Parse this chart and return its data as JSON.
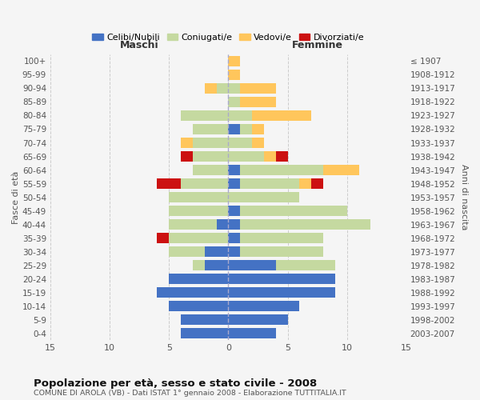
{
  "age_groups": [
    "0-4",
    "5-9",
    "10-14",
    "15-19",
    "20-24",
    "25-29",
    "30-34",
    "35-39",
    "40-44",
    "45-49",
    "50-54",
    "55-59",
    "60-64",
    "65-69",
    "70-74",
    "75-79",
    "80-84",
    "85-89",
    "90-94",
    "95-99",
    "100+"
  ],
  "birth_years": [
    "2003-2007",
    "1998-2002",
    "1993-1997",
    "1988-1992",
    "1983-1987",
    "1978-1982",
    "1973-1977",
    "1968-1972",
    "1963-1967",
    "1958-1962",
    "1953-1957",
    "1948-1952",
    "1943-1947",
    "1938-1942",
    "1933-1937",
    "1928-1932",
    "1923-1927",
    "1918-1922",
    "1913-1917",
    "1908-1912",
    "≤ 1907"
  ],
  "male": {
    "celibi": [
      4,
      4,
      5,
      6,
      5,
      2,
      2,
      0,
      1,
      0,
      0,
      0,
      0,
      0,
      0,
      0,
      0,
      0,
      0,
      0,
      0
    ],
    "coniugati": [
      0,
      0,
      0,
      0,
      0,
      1,
      3,
      5,
      4,
      5,
      5,
      4,
      3,
      3,
      3,
      3,
      4,
      0,
      1,
      0,
      0
    ],
    "vedovi": [
      0,
      0,
      0,
      0,
      0,
      0,
      0,
      0,
      0,
      0,
      0,
      0,
      0,
      0,
      1,
      0,
      0,
      0,
      1,
      0,
      0
    ],
    "divorziati": [
      0,
      0,
      0,
      0,
      0,
      0,
      0,
      1,
      0,
      0,
      0,
      2,
      0,
      1,
      0,
      0,
      0,
      0,
      0,
      0,
      0
    ]
  },
  "female": {
    "nubili": [
      4,
      5,
      6,
      9,
      9,
      4,
      1,
      1,
      1,
      1,
      0,
      1,
      1,
      0,
      0,
      1,
      0,
      0,
      0,
      0,
      0
    ],
    "coniugate": [
      0,
      0,
      0,
      0,
      0,
      5,
      7,
      7,
      11,
      9,
      6,
      5,
      7,
      3,
      2,
      1,
      2,
      1,
      1,
      0,
      0
    ],
    "vedove": [
      0,
      0,
      0,
      0,
      0,
      0,
      0,
      0,
      0,
      0,
      0,
      1,
      3,
      1,
      1,
      1,
      5,
      3,
      3,
      1,
      1
    ],
    "divorziate": [
      0,
      0,
      0,
      0,
      0,
      0,
      0,
      0,
      0,
      0,
      0,
      1,
      0,
      1,
      0,
      0,
      0,
      0,
      0,
      0,
      0
    ]
  },
  "colors": {
    "celibi": "#4472c4",
    "coniugati": "#c5d9a0",
    "vedovi": "#ffc65c",
    "divorziati": "#cc1111"
  },
  "xlim": 15,
  "title": "Popolazione per età, sesso e stato civile - 2008",
  "subtitle": "COMUNE DI AROLA (VB) - Dati ISTAT 1° gennaio 2008 - Elaborazione TUTTITALIA.IT",
  "ylabel_left": "Fasce di età",
  "ylabel_right": "Anni di nascita",
  "xlabel_left": "Maschi",
  "xlabel_right": "Femmine",
  "legend_labels": [
    "Celibi/Nubili",
    "Coniugati/e",
    "Vedovi/e",
    "Divorziati/e"
  ],
  "bg_color": "#f5f5f5",
  "grid_color": "#cccccc"
}
